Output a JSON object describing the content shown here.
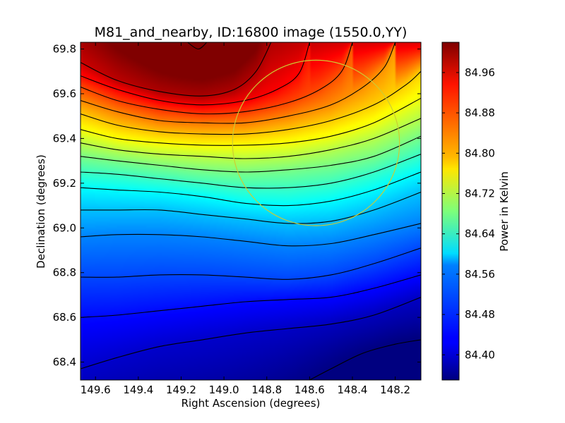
{
  "chart_data": {
    "type": "heatmap",
    "title": "M81_and_nearby, ID:16800 image (1550.0,YY)",
    "xlabel": "Right Ascension (degrees)",
    "ylabel": "Declination (degrees)",
    "x_direction": "decreasing",
    "xlim": [
      149.67,
      148.08
    ],
    "ylim": [
      68.32,
      69.83
    ],
    "x_ticks": [
      149.6,
      149.4,
      149.2,
      149.0,
      148.8,
      148.6,
      148.4,
      148.2
    ],
    "x_tick_labels": [
      "149.6",
      "149.4",
      "149.2",
      "149.0",
      "148.8",
      "148.6",
      "148.4",
      "148.2"
    ],
    "y_ticks": [
      68.4,
      68.6,
      68.8,
      69.0,
      69.2,
      69.4,
      69.6,
      69.8
    ],
    "y_tick_labels": [
      "68.4",
      "68.6",
      "68.8",
      "69.0",
      "69.2",
      "69.4",
      "69.6",
      "69.8"
    ],
    "colormap": "jet",
    "colorbar": {
      "label": "Power in Kelvin",
      "range": [
        84.35,
        85.02
      ],
      "ticks": [
        84.4,
        84.48,
        84.56,
        84.64,
        84.72,
        84.8,
        84.88,
        84.96
      ],
      "tick_labels": [
        "84.40",
        "84.48",
        "84.56",
        "84.64",
        "84.72",
        "84.80",
        "84.88",
        "84.96"
      ]
    },
    "field": {
      "peak_ra": 149.12,
      "peak_dec": 69.82,
      "peak_value": 85.0,
      "min_value": 84.35
    },
    "contours": [
      {
        "level": 85.0,
        "points": [
          [
            149.17,
            69.83
          ],
          [
            149.12,
            69.8
          ],
          [
            149.08,
            69.83
          ]
        ]
      },
      {
        "level": 84.96,
        "points": [
          [
            149.67,
            69.74
          ],
          [
            149.5,
            69.66
          ],
          [
            149.3,
            69.61
          ],
          [
            149.1,
            69.59
          ],
          [
            148.95,
            69.62
          ],
          [
            148.85,
            69.7
          ],
          [
            148.78,
            69.83
          ]
        ]
      },
      {
        "level": 84.92,
        "points": [
          [
            149.67,
            69.68
          ],
          [
            149.5,
            69.62
          ],
          [
            149.3,
            69.57
          ],
          [
            149.1,
            69.55
          ],
          [
            148.9,
            69.57
          ],
          [
            148.75,
            69.62
          ],
          [
            148.65,
            69.69
          ],
          [
            148.6,
            69.83
          ]
        ]
      },
      {
        "level": 84.88,
        "points": [
          [
            149.67,
            69.63
          ],
          [
            149.5,
            69.57
          ],
          [
            149.3,
            69.53
          ],
          [
            149.1,
            69.51
          ],
          [
            148.9,
            69.52
          ],
          [
            148.7,
            69.56
          ],
          [
            148.55,
            69.62
          ],
          [
            148.45,
            69.7
          ],
          [
            148.4,
            69.83
          ]
        ]
      },
      {
        "level": 84.84,
        "points": [
          [
            149.67,
            69.57
          ],
          [
            149.5,
            69.52
          ],
          [
            149.3,
            69.48
          ],
          [
            149.1,
            69.47
          ],
          [
            148.9,
            69.47
          ],
          [
            148.7,
            69.5
          ],
          [
            148.5,
            69.55
          ],
          [
            148.35,
            69.63
          ],
          [
            148.25,
            69.72
          ],
          [
            148.2,
            69.83
          ]
        ]
      },
      {
        "level": 84.8,
        "points": [
          [
            149.67,
            69.51
          ],
          [
            149.5,
            69.46
          ],
          [
            149.3,
            69.43
          ],
          [
            149.1,
            69.42
          ],
          [
            148.9,
            69.42
          ],
          [
            148.7,
            69.44
          ],
          [
            148.5,
            69.48
          ],
          [
            148.3,
            69.55
          ],
          [
            148.15,
            69.64
          ],
          [
            148.08,
            69.7
          ]
        ]
      },
      {
        "level": 84.76,
        "points": [
          [
            149.67,
            69.44
          ],
          [
            149.5,
            69.4
          ],
          [
            149.3,
            69.38
          ],
          [
            149.1,
            69.37
          ],
          [
            148.9,
            69.37
          ],
          [
            148.7,
            69.38
          ],
          [
            148.5,
            69.41
          ],
          [
            148.3,
            69.47
          ],
          [
            148.08,
            69.58
          ]
        ]
      },
      {
        "level": 84.72,
        "points": [
          [
            149.67,
            69.38
          ],
          [
            149.5,
            69.35
          ],
          [
            149.3,
            69.33
          ],
          [
            149.1,
            69.32
          ],
          [
            148.9,
            69.31
          ],
          [
            148.7,
            69.32
          ],
          [
            148.5,
            69.35
          ],
          [
            148.3,
            69.4
          ],
          [
            148.08,
            69.49
          ]
        ]
      },
      {
        "level": 84.68,
        "points": [
          [
            149.67,
            69.32
          ],
          [
            149.5,
            69.3
          ],
          [
            149.3,
            69.28
          ],
          [
            149.1,
            69.26
          ],
          [
            148.9,
            69.25
          ],
          [
            148.7,
            69.26
          ],
          [
            148.5,
            69.28
          ],
          [
            148.3,
            69.32
          ],
          [
            148.08,
            69.41
          ]
        ]
      },
      {
        "level": 84.64,
        "points": [
          [
            149.67,
            69.25
          ],
          [
            149.5,
            69.24
          ],
          [
            149.3,
            69.22
          ],
          [
            149.1,
            69.2
          ],
          [
            148.9,
            69.18
          ],
          [
            148.7,
            69.18
          ],
          [
            148.5,
            69.2
          ],
          [
            148.3,
            69.25
          ],
          [
            148.08,
            69.33
          ]
        ]
      },
      {
        "level": 84.6,
        "points": [
          [
            149.67,
            69.18
          ],
          [
            149.5,
            69.17
          ],
          [
            149.3,
            69.16
          ],
          [
            149.1,
            69.14
          ],
          [
            148.9,
            69.11
          ],
          [
            148.7,
            69.1
          ],
          [
            148.5,
            69.12
          ],
          [
            148.3,
            69.17
          ],
          [
            148.08,
            69.25
          ]
        ]
      },
      {
        "level": 84.56,
        "points": [
          [
            149.67,
            69.08
          ],
          [
            149.5,
            69.08
          ],
          [
            149.3,
            69.08
          ],
          [
            149.1,
            69.06
          ],
          [
            148.9,
            69.04
          ],
          [
            148.7,
            69.02
          ],
          [
            148.5,
            69.03
          ],
          [
            148.3,
            69.08
          ],
          [
            148.08,
            69.16
          ]
        ]
      },
      {
        "level": 84.52,
        "points": [
          [
            149.67,
            68.96
          ],
          [
            149.5,
            68.97
          ],
          [
            149.3,
            68.97
          ],
          [
            149.1,
            68.96
          ],
          [
            148.9,
            68.94
          ],
          [
            148.7,
            68.92
          ],
          [
            148.5,
            68.93
          ],
          [
            148.3,
            68.97
          ],
          [
            148.08,
            69.02
          ]
        ]
      },
      {
        "level": 84.48,
        "points": [
          [
            149.67,
            68.78
          ],
          [
            149.5,
            68.78
          ],
          [
            149.3,
            68.79
          ],
          [
            149.1,
            68.79
          ],
          [
            148.9,
            68.78
          ],
          [
            148.7,
            68.77
          ],
          [
            148.5,
            68.79
          ],
          [
            148.3,
            68.84
          ],
          [
            148.08,
            68.91
          ]
        ]
      },
      {
        "level": 84.44,
        "points": [
          [
            149.67,
            68.6
          ],
          [
            149.5,
            68.61
          ],
          [
            149.3,
            68.63
          ],
          [
            149.1,
            68.65
          ],
          [
            148.9,
            68.67
          ],
          [
            148.7,
            68.68
          ],
          [
            148.5,
            68.69
          ],
          [
            148.3,
            68.73
          ],
          [
            148.08,
            68.79
          ]
        ]
      },
      {
        "level": 84.4,
        "points": [
          [
            149.67,
            68.37
          ],
          [
            149.5,
            68.42
          ],
          [
            149.3,
            68.47
          ],
          [
            149.1,
            68.5
          ],
          [
            148.9,
            68.53
          ],
          [
            148.7,
            68.55
          ],
          [
            148.5,
            68.57
          ],
          [
            148.3,
            68.61
          ],
          [
            148.08,
            68.69
          ]
        ]
      },
      {
        "level": 84.36,
        "points": [
          [
            148.6,
            68.32
          ],
          [
            148.5,
            68.37
          ],
          [
            148.35,
            68.44
          ],
          [
            148.2,
            68.48
          ],
          [
            148.08,
            68.5
          ]
        ]
      }
    ],
    "circle": {
      "center_ra": 148.57,
      "center_dec": 69.38,
      "radius_dec": 0.37,
      "radius_ra": 0.39,
      "color": "#cccc33"
    }
  }
}
